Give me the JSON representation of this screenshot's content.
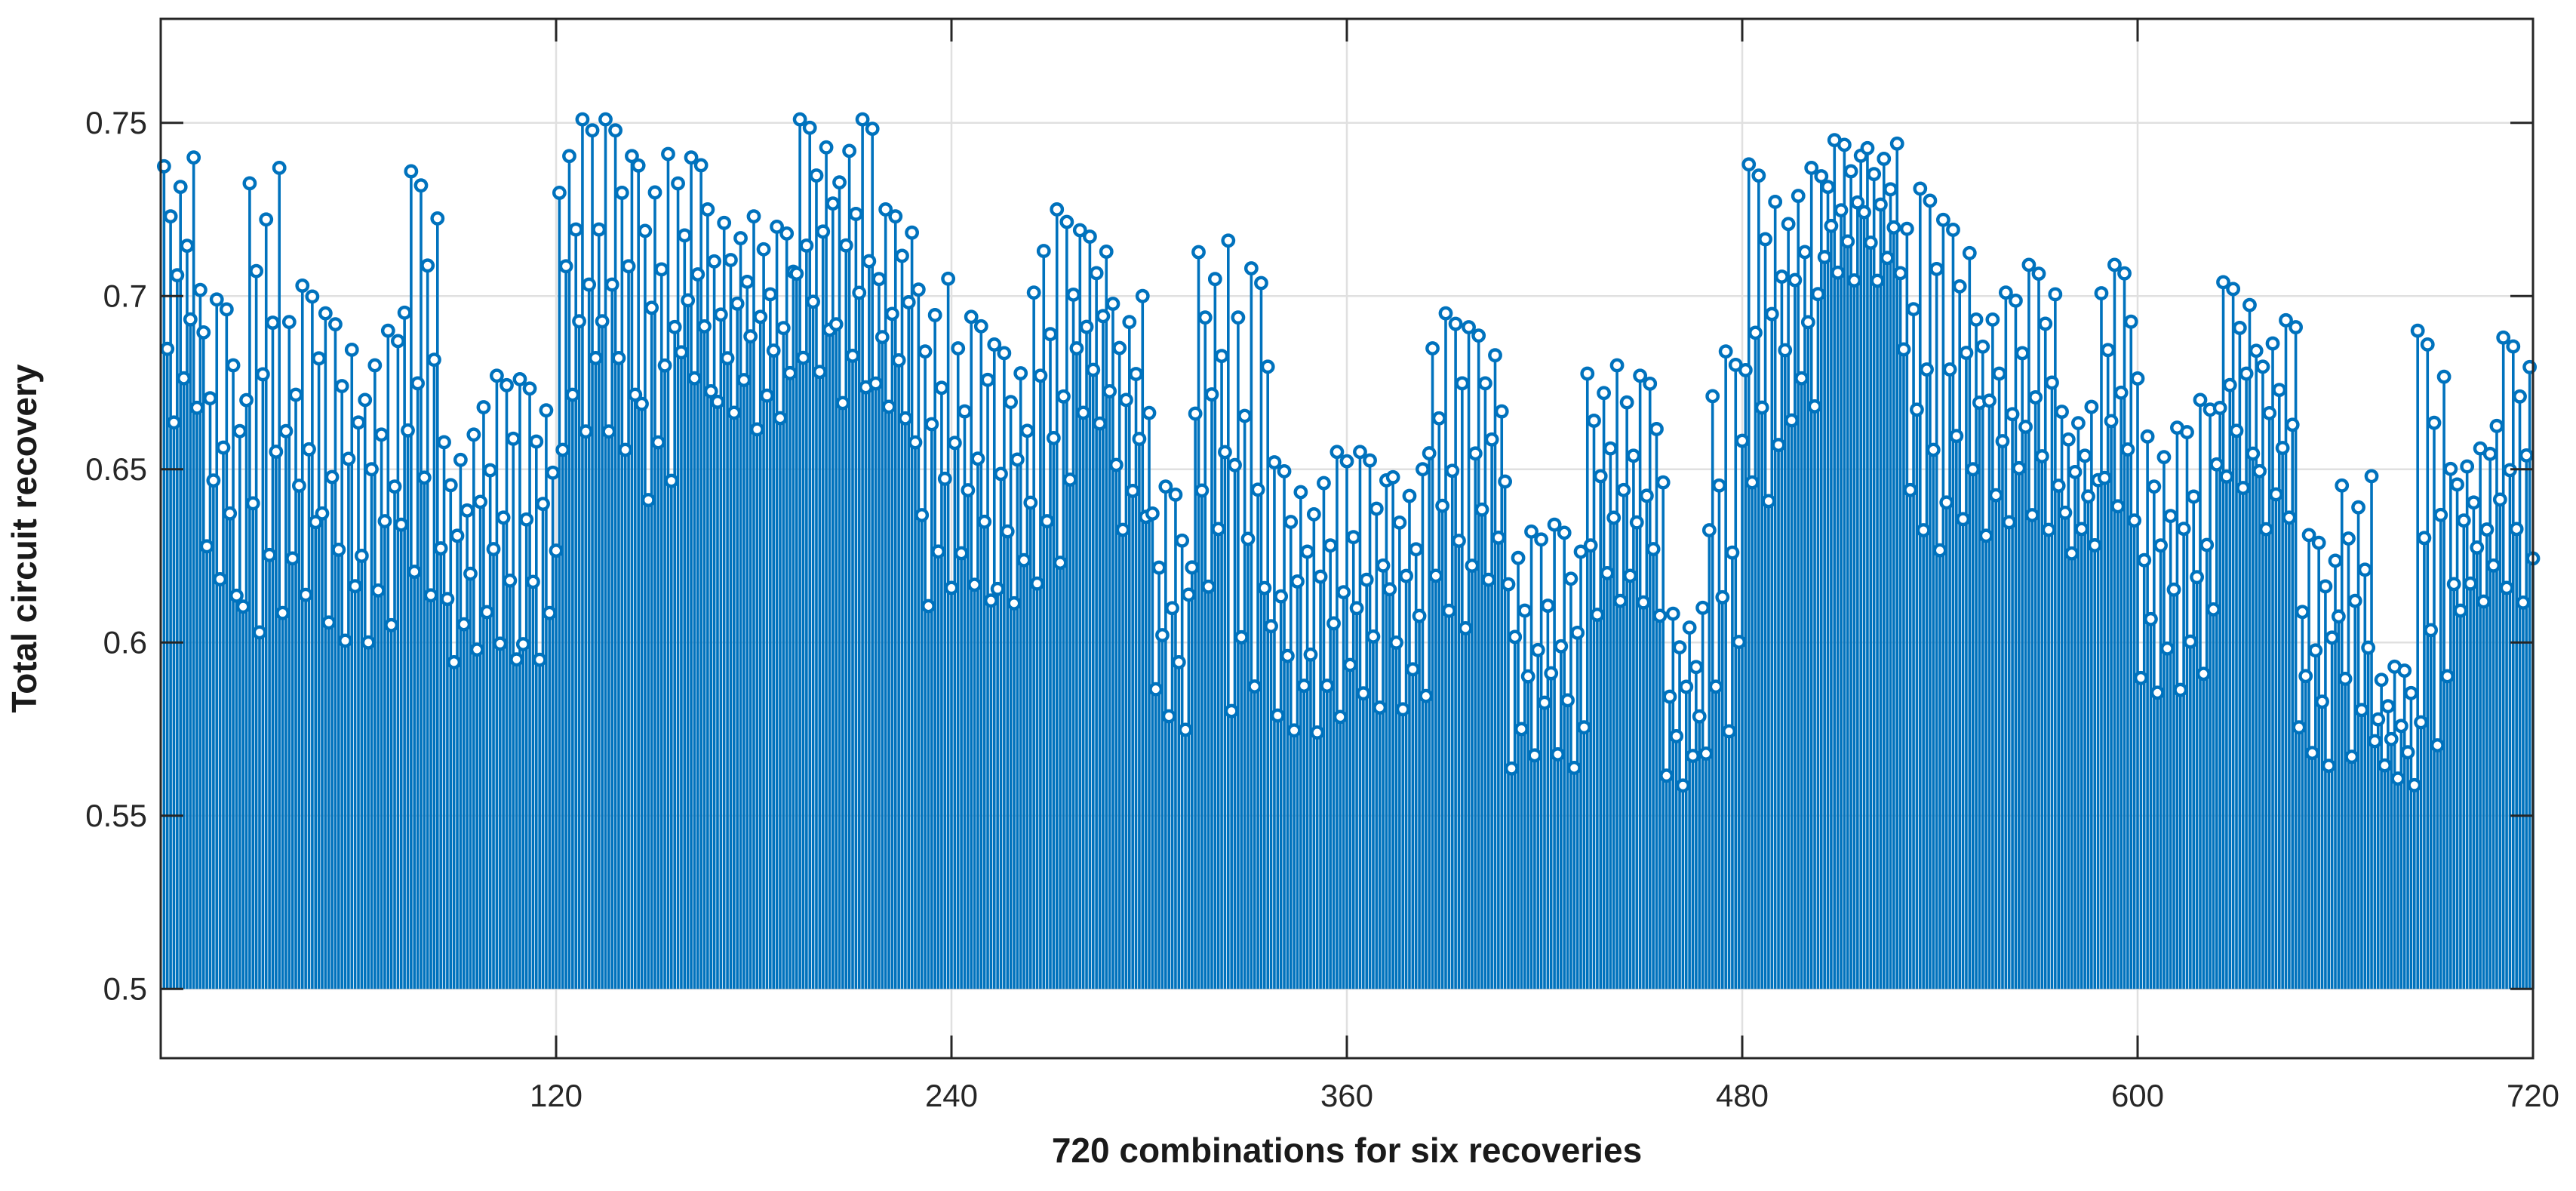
{
  "figure": {
    "background": "#ffffff",
    "border_color": "#262626",
    "grid_color": "#e0e0e0",
    "tick_color": "#262626",
    "stem_color": "#0072bd",
    "marker_fill": "#ffffff"
  },
  "chart_data": {
    "type": "stem",
    "title": "",
    "xlabel": "720 combinations for six recoveries",
    "ylabel": "Total circuit recovery",
    "x_ticks": [
      120,
      240,
      360,
      480,
      600,
      720
    ],
    "x_tick_labels": [
      "120",
      "240",
      "360",
      "480",
      "600",
      "720"
    ],
    "y_ticks": [
      0.5,
      0.55,
      0.6,
      0.65,
      0.7,
      0.75
    ],
    "y_tick_labels": [
      "0.5",
      "0.55",
      "0.6",
      "0.65",
      "0.7",
      "0.75"
    ],
    "xlim": [
      0,
      720
    ],
    "ylim": [
      0.48,
      0.78
    ],
    "grid": true,
    "legend": null,
    "baseline": 0.5,
    "n_points": 720,
    "values_note": "720 stem values reconstructed from the plotted envelope; per-12-point [min,max] read from the figure",
    "envelope_segment_size": 12,
    "envelope": [
      [
        0.655,
        0.74
      ],
      [
        0.604,
        0.699
      ],
      [
        0.588,
        0.737
      ],
      [
        0.598,
        0.703
      ],
      [
        0.59,
        0.695
      ],
      [
        0.59,
        0.69
      ],
      [
        0.6,
        0.736
      ],
      [
        0.587,
        0.66
      ],
      [
        0.586,
        0.677
      ],
      [
        0.586,
        0.676
      ],
      [
        0.645,
        0.751
      ],
      [
        0.645,
        0.751
      ],
      [
        0.63,
        0.741
      ],
      [
        0.665,
        0.74
      ],
      [
        0.66,
        0.723
      ],
      [
        0.655,
        0.72
      ],
      [
        0.67,
        0.751
      ],
      [
        0.66,
        0.751
      ],
      [
        0.658,
        0.725
      ],
      [
        0.6,
        0.705
      ],
      [
        0.603,
        0.694
      ],
      [
        0.603,
        0.686
      ],
      [
        0.605,
        0.725
      ],
      [
        0.657,
        0.719
      ],
      [
        0.625,
        0.7
      ],
      [
        0.567,
        0.645
      ],
      [
        0.605,
        0.716
      ],
      [
        0.566,
        0.708
      ],
      [
        0.566,
        0.652
      ],
      [
        0.565,
        0.655
      ],
      [
        0.573,
        0.655
      ],
      [
        0.573,
        0.65
      ],
      [
        0.594,
        0.695
      ],
      [
        0.61,
        0.691
      ],
      [
        0.556,
        0.632
      ],
      [
        0.556,
        0.634
      ],
      [
        0.6,
        0.68
      ],
      [
        0.6,
        0.677
      ],
      [
        0.553,
        0.61
      ],
      [
        0.555,
        0.684
      ],
      [
        0.63,
        0.738
      ],
      [
        0.656,
        0.737
      ],
      [
        0.7,
        0.745
      ],
      [
        0.7,
        0.744
      ],
      [
        0.615,
        0.731
      ],
      [
        0.626,
        0.722
      ],
      [
        0.623,
        0.701
      ],
      [
        0.624,
        0.709
      ],
      [
        0.621,
        0.668
      ],
      [
        0.627,
        0.709
      ],
      [
        0.577,
        0.662
      ],
      [
        0.577,
        0.67
      ],
      [
        0.638,
        0.704
      ],
      [
        0.626,
        0.693
      ],
      [
        0.557,
        0.631
      ],
      [
        0.558,
        0.648
      ],
      [
        0.555,
        0.593
      ],
      [
        0.557,
        0.69
      ],
      [
        0.604,
        0.656
      ],
      [
        0.603,
        0.688
      ]
    ],
    "jitter_pattern": [
      0.97,
      0.35,
      0.8,
      0.1,
      0.6,
      0.9,
      0.25,
      0.7,
      0.45,
      1.0,
      0.15,
      0.55
    ],
    "pattern_rotation": 5
  }
}
